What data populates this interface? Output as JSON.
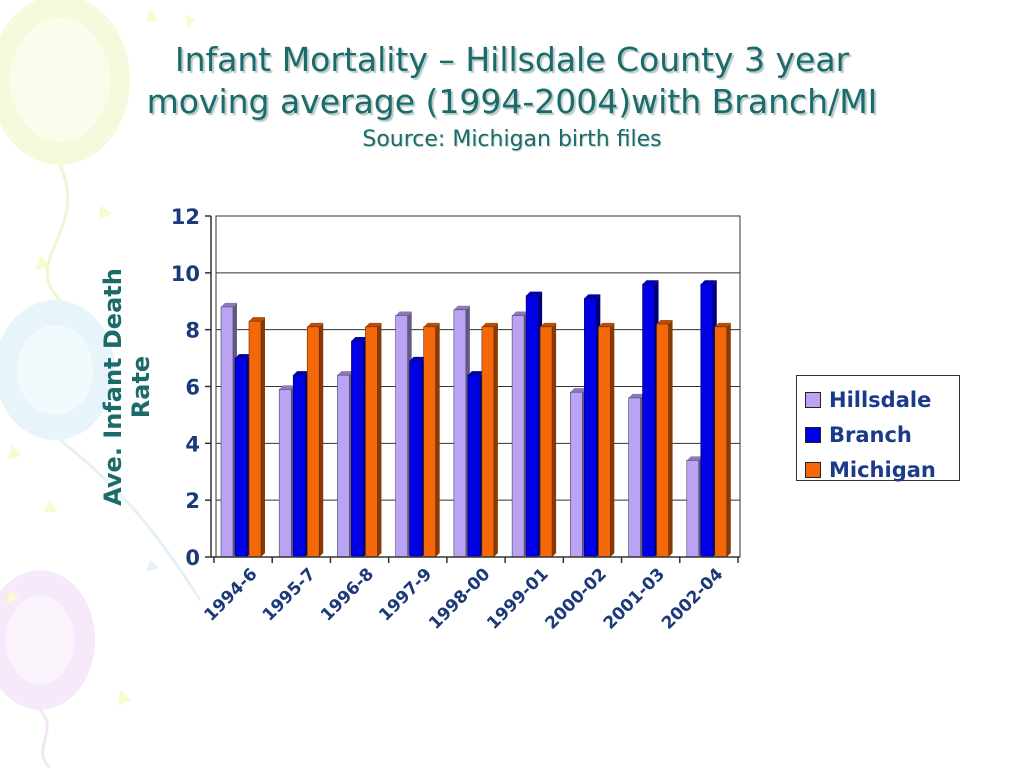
{
  "slide": {
    "title_line1": "Infant Mortality – Hillsdale County 3 year",
    "title_line2": "moving average (1994-2004)with Branch/MI",
    "subtitle": "Source: Michigan birth files"
  },
  "chart_data": {
    "type": "bar",
    "title": "Infant Mortality – Hillsdale County 3 year moving average (1994-2004)with Branch/MI",
    "subtitle": "Source: Michigan birth files",
    "xlabel": "",
    "ylabel": "Ave. Infant Death Rate",
    "ylim": [
      0,
      12
    ],
    "yticks": [
      0,
      2,
      4,
      6,
      8,
      10,
      12
    ],
    "grid": true,
    "legend_position": "right",
    "categories": [
      "1994-6",
      "1995-7",
      "1996-8",
      "1997-9",
      "1998-00",
      "1999-01",
      "2000-02",
      "2001-03",
      "2002-04"
    ],
    "series": [
      {
        "name": "Hillsdale",
        "color": "#b9a3f2",
        "values": [
          8.8,
          5.9,
          6.4,
          8.5,
          8.7,
          8.5,
          5.8,
          5.6,
          3.4
        ]
      },
      {
        "name": "Branch",
        "color": "#0000e6",
        "values": [
          7.0,
          6.4,
          7.6,
          6.9,
          6.4,
          9.2,
          9.1,
          9.6,
          9.6
        ]
      },
      {
        "name": "Michigan",
        "color": "#f5680a",
        "values": [
          8.3,
          8.1,
          8.1,
          8.1,
          8.1,
          8.1,
          8.1,
          8.2,
          8.1
        ]
      }
    ]
  }
}
